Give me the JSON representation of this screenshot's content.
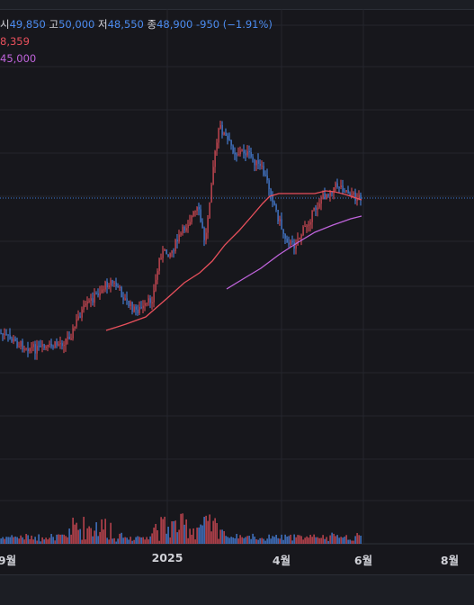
{
  "legend": {
    "open_label": "시",
    "open_value": "49,850",
    "high_label": "고",
    "high_value": "50,000",
    "low_label": "저",
    "low_value": "48,550",
    "close_label": "종",
    "close_value": "48,900",
    "change_value": "-950 (−1.91%)",
    "ma1_value": "8,359",
    "ma2_value": "45,000"
  },
  "chart_data": {
    "type": "candlestick",
    "x_tick_labels": [
      "9월",
      "2025",
      "4월",
      "6월",
      "8월"
    ],
    "last_close": 48900,
    "moving_averages": [
      {
        "color": "#e9505c",
        "value": "8,359"
      },
      {
        "color": "#c064dc",
        "value": "45,000"
      }
    ],
    "colors": {
      "up": "#e9505c",
      "down": "#4c8cf0",
      "background": "#17171c"
    }
  }
}
